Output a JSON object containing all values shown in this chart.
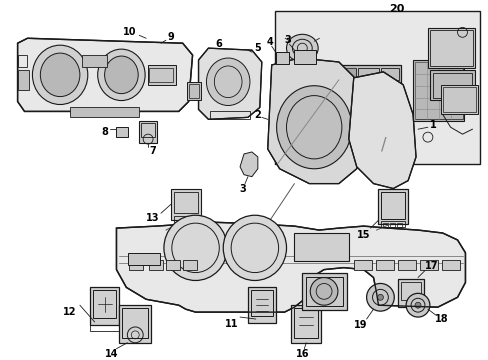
{
  "bg_color": "#ffffff",
  "line_color": "#1a1a1a",
  "fig_width": 4.89,
  "fig_height": 3.6,
  "dpi": 100,
  "gray_fill": "#d8d8d8",
  "light_gray": "#eeeeee",
  "mid_gray": "#c8c8c8"
}
